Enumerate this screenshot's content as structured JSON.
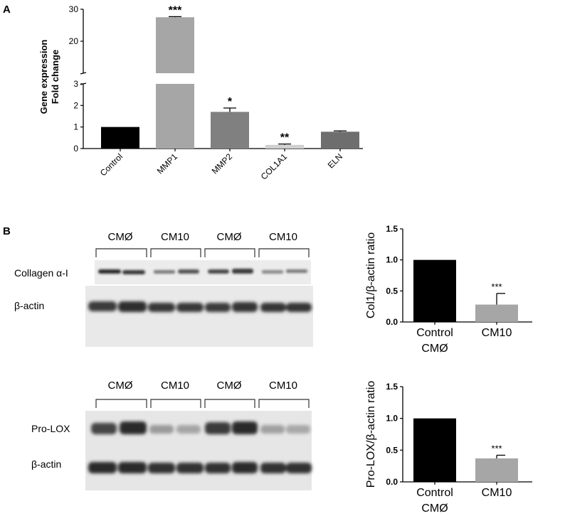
{
  "panel_a": {
    "letter": "A",
    "ylabel_line1": "Gene expression",
    "ylabel_line2": "Fold change"
  },
  "panel_b": {
    "letter": "B",
    "blot_top": {
      "groups": [
        "CMØ",
        "CM10",
        "CMØ",
        "CM10"
      ],
      "band_labels": [
        "Collagen α-I",
        "β-actin"
      ]
    },
    "blot_bottom": {
      "groups": [
        "CMØ",
        "CM10",
        "CMØ",
        "CM10"
      ],
      "band_labels": [
        "Pro-LOX",
        "β-actin"
      ]
    }
  },
  "chart_data": [
    {
      "type": "bar",
      "panel": "A",
      "categories": [
        "Control",
        "MMP1",
        "MMP2",
        "COL1A1",
        "ELN"
      ],
      "values": [
        1.0,
        27.5,
        1.7,
        0.17,
        0.78
      ],
      "errors": [
        0.0,
        0.2,
        0.18,
        0.04,
        0.04
      ],
      "significance": [
        "",
        "***",
        "*",
        "**",
        ""
      ],
      "colors": [
        "#000000",
        "#a6a6a6",
        "#808080",
        "#d0d0d0",
        "#6e6e6e"
      ],
      "ylabel": "Gene expression Fold change",
      "ylim": [
        0,
        30
      ],
      "axis_break": [
        3,
        10
      ],
      "yticks_lower": [
        "0",
        "1",
        "2",
        "3"
      ],
      "yticks_upper": [
        "20",
        "30"
      ],
      "grid": false
    },
    {
      "type": "bar",
      "panel": "B-top",
      "categories": [
        "Control\nCMØ",
        "CM10"
      ],
      "values": [
        1.0,
        0.28
      ],
      "errors": [
        0.0,
        0.18
      ],
      "significance": [
        "",
        "***"
      ],
      "colors": [
        "#000000",
        "#a6a6a6"
      ],
      "ylabel": "Col1/β-actin ratio",
      "ylim": [
        0,
        1.5
      ],
      "yticks": [
        "0.0",
        "0.5",
        "1.0",
        "1.5"
      ],
      "grid": false
    },
    {
      "type": "bar",
      "panel": "B-bottom",
      "categories": [
        "Control\nCMØ",
        "CM10"
      ],
      "values": [
        1.0,
        0.37
      ],
      "errors": [
        0.0,
        0.05
      ],
      "significance": [
        "",
        "***"
      ],
      "colors": [
        "#000000",
        "#a6a6a6"
      ],
      "ylabel": "Pro-LOX/β-actin ratio",
      "ylim": [
        0,
        1.5
      ],
      "yticks": [
        "0.0",
        "0.5",
        "1.0",
        "1.5"
      ],
      "grid": false
    }
  ]
}
